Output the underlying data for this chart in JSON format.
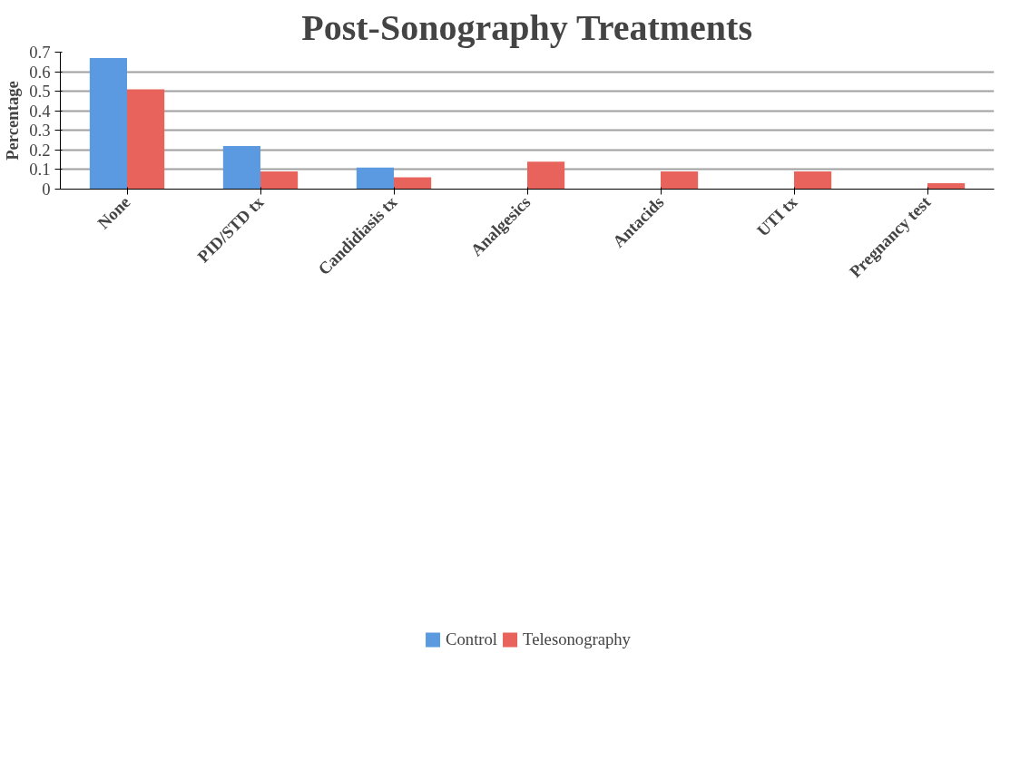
{
  "chart_data": {
    "type": "bar",
    "title": "Post-Sonography Treatments",
    "ylabel": "Percentage",
    "categories": [
      "None",
      "PID/STD tx",
      "Candidiasis tx",
      "Analgesics",
      "Antacids",
      "UTI tx",
      "Pregnancy test"
    ],
    "series": [
      {
        "name": "Control",
        "color": "#5b9ae0",
        "values": [
          0.67,
          0.22,
          0.11,
          0,
          0,
          0,
          0
        ]
      },
      {
        "name": "Telesonography",
        "color": "#e8635b",
        "values": [
          0.51,
          0.09,
          0.06,
          0.14,
          0.09,
          0.09,
          0.03
        ]
      }
    ],
    "ylim": [
      0,
      0.7
    ],
    "yticks": [
      0,
      0.1,
      0.2,
      0.3,
      0.4,
      0.5,
      0.6,
      0.7
    ],
    "grid": "y",
    "legend": "bottom"
  }
}
